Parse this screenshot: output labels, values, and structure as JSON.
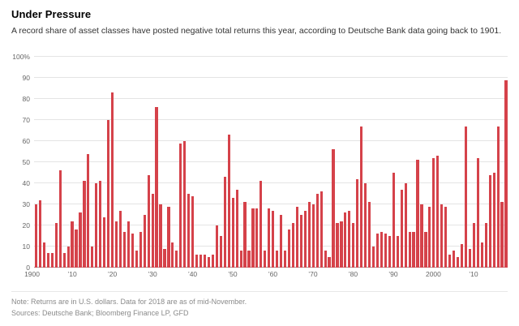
{
  "header": {
    "title": "Under Pressure",
    "subtitle": "A record share of asset classes have posted negative total returns this year, according to Deutsche Bank data going back to 1901."
  },
  "footer": {
    "note": "Note: Returns are in U.S. dollars. Data for 2018 are as of mid-November.",
    "sources": "Sources: Deutsche Bank; Bloomberg Finance LP, GFD"
  },
  "chart_data": {
    "type": "bar",
    "title": "Under Pressure",
    "subtitle": "A record share of asset classes have posted negative total returns this year, according to Deutsche Bank data going back to 1901.",
    "unit": "percent of asset classes with negative total returns",
    "start_year": 1901,
    "end_year": 2018,
    "values": [
      30,
      32,
      12,
      7,
      7,
      21,
      46,
      7,
      10,
      22,
      18,
      26,
      41,
      54,
      10,
      40,
      41,
      24,
      70,
      83,
      22,
      27,
      17,
      22,
      16,
      8,
      17,
      25,
      44,
      35,
      76,
      30,
      9,
      29,
      12,
      8,
      59,
      60,
      35,
      34,
      6,
      6,
      6,
      5,
      6,
      20,
      15,
      43,
      63,
      33,
      37,
      8,
      31,
      8,
      28,
      28,
      41,
      8,
      28,
      27,
      8,
      25,
      8,
      18,
      21,
      29,
      25,
      27,
      31,
      30,
      35,
      36,
      8,
      5,
      56,
      21,
      22,
      26,
      27,
      21,
      42,
      67,
      40,
      31,
      10,
      16,
      17,
      16,
      15,
      45,
      15,
      37,
      40,
      17,
      17,
      51,
      30,
      17,
      29,
      52,
      53,
      30,
      29,
      6,
      8,
      5,
      11,
      67,
      9,
      21,
      52,
      12,
      21,
      44,
      45,
      67,
      31,
      89
    ],
    "ylim": [
      0,
      100
    ],
    "y_ticks": [
      0,
      10,
      20,
      30,
      40,
      50,
      60,
      70,
      80,
      90,
      100
    ],
    "y_top_label": "100%",
    "x_tick_labels": [
      {
        "year": 1900,
        "label": "1900"
      },
      {
        "year": 1910,
        "label": "’10"
      },
      {
        "year": 1920,
        "label": "’20"
      },
      {
        "year": 1930,
        "label": "’30"
      },
      {
        "year": 1940,
        "label": "’40"
      },
      {
        "year": 1950,
        "label": "’50"
      },
      {
        "year": 1960,
        "label": "’60"
      },
      {
        "year": 1970,
        "label": "’70"
      },
      {
        "year": 1980,
        "label": "’80"
      },
      {
        "year": 1990,
        "label": "’90"
      },
      {
        "year": 2000,
        "label": "2000"
      },
      {
        "year": 2010,
        "label": "’10"
      }
    ],
    "bar_color": "#d5424a",
    "grid": true,
    "legend_position": "none"
  }
}
